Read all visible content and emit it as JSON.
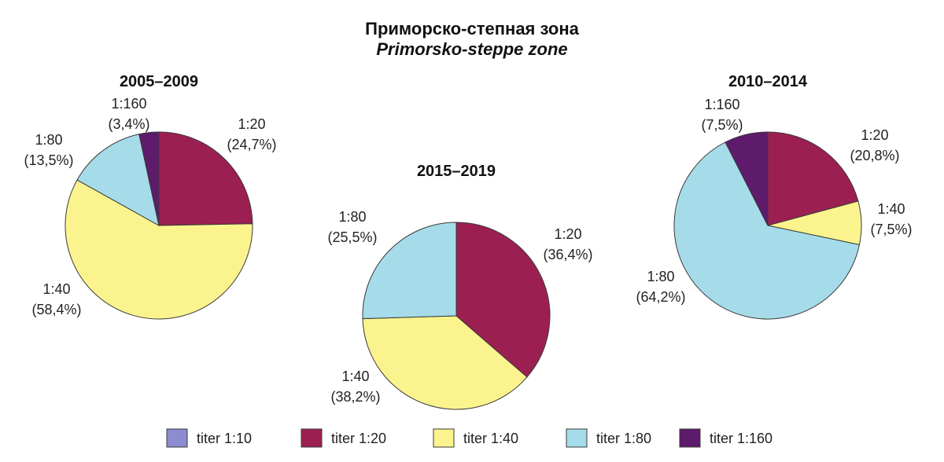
{
  "title": "Приморско-степная зона",
  "subtitle": "Primorsko-steppe zone",
  "colors": {
    "titer 1:10": "#8c8cd0",
    "titer 1:20": "#9c1f52",
    "titer 1:40": "#fbf48e",
    "titer 1:80": "#a6dce9",
    "titer 1:160": "#5e1a6b"
  },
  "legend": [
    "titer 1:10",
    "titer 1:20",
    "titer 1:40",
    "titer 1:80",
    "titer 1:160"
  ],
  "chart_data": [
    {
      "type": "pie",
      "title": "2005–2009",
      "slices": [
        {
          "series": "titer 1:20",
          "name": "1:20",
          "value": 24.7,
          "label": "(24,7%)"
        },
        {
          "series": "titer 1:40",
          "name": "1:40",
          "value": 58.4,
          "label": "(58,4%)"
        },
        {
          "series": "titer 1:80",
          "name": "1:80",
          "value": 13.5,
          "label": "(13,5%)"
        },
        {
          "series": "titer 1:160",
          "name": "1:160",
          "value": 3.4,
          "label": "(3,4%)"
        }
      ]
    },
    {
      "type": "pie",
      "title": "2015–2019",
      "slices": [
        {
          "series": "titer 1:20",
          "name": "1:20",
          "value": 36.4,
          "label": "(36,4%)"
        },
        {
          "series": "titer 1:40",
          "name": "1:40",
          "value": 38.2,
          "label": "(38,2%)"
        },
        {
          "series": "titer 1:80",
          "name": "1:80",
          "value": 25.5,
          "label": "(25,5%)"
        }
      ]
    },
    {
      "type": "pie",
      "title": "2010–2014",
      "slices": [
        {
          "series": "titer 1:20",
          "name": "1:20",
          "value": 20.8,
          "label": "(20,8%)"
        },
        {
          "series": "titer 1:40",
          "name": "1:40",
          "value": 7.5,
          "label": "(7,5%)"
        },
        {
          "series": "titer 1:80",
          "name": "1:80",
          "value": 64.2,
          "label": "(64,2%)"
        },
        {
          "series": "titer 1:160",
          "name": "1:160",
          "value": 7.5,
          "label": "(7,5%)"
        }
      ]
    }
  ]
}
